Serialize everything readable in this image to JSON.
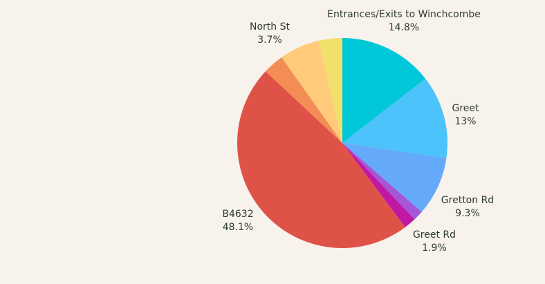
{
  "chart_data": {
    "type": "pie",
    "slices": [
      {
        "label": "Entrances/Exits to Winchcombe",
        "value": 14.8,
        "value_label": "14.8%",
        "color": "#00c8d8",
        "show_label": true
      },
      {
        "label": "Greet",
        "value": 13.0,
        "value_label": "13%",
        "color": "#4cc3fb",
        "show_label": true
      },
      {
        "label": "Gretton Rd",
        "value": 9.3,
        "value_label": "9.3%",
        "color": "#65a9fb",
        "show_label": true
      },
      {
        "label": "",
        "value": 1.6,
        "value_label": "",
        "color": "#a457d6",
        "show_label": false
      },
      {
        "label": "Greet Rd",
        "value": 1.9,
        "value_label": "1.9%",
        "color": "#c117a5",
        "show_label": true
      },
      {
        "label": "B4632",
        "value": 48.1,
        "value_label": "48.1%",
        "color": "#df5247",
        "show_label": true
      },
      {
        "label": "",
        "value": 3.3,
        "value_label": "",
        "color": "#f48d55",
        "show_label": false
      },
      {
        "label": "",
        "value": 6.3,
        "value_label": "",
        "color": "#ffcb7a",
        "show_label": false
      },
      {
        "label": "North St",
        "value": 3.7,
        "value_label": "3.7%",
        "color": "#f2e06c",
        "show_label": true
      }
    ]
  }
}
